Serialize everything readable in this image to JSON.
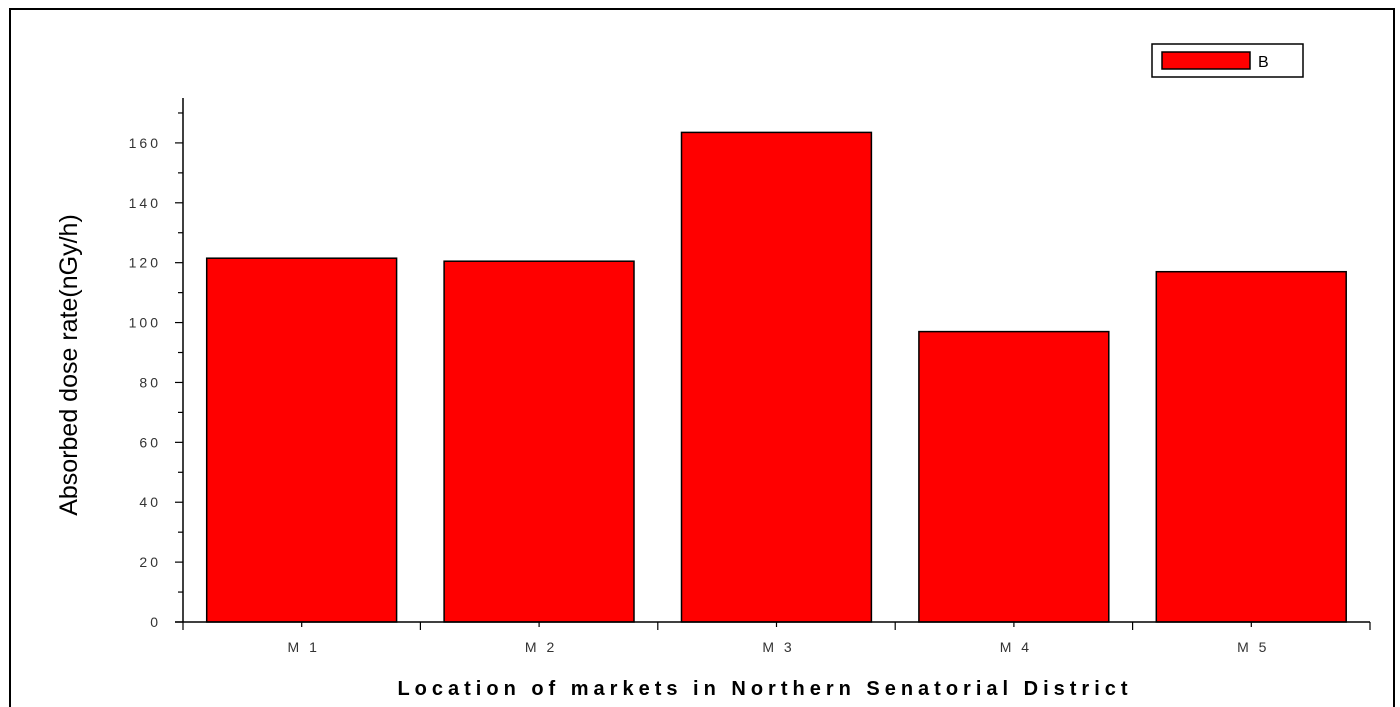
{
  "chart_data": {
    "type": "bar",
    "categories": [
      "M 1",
      "M 2",
      "M 3",
      "M 4",
      "M 5"
    ],
    "series": [
      {
        "name": "B",
        "values": [
          121.5,
          120.5,
          163.5,
          97,
          117
        ]
      }
    ],
    "xlabel": "Location of markets in Northern Senatorial District",
    "ylabel": "Absorbed dose rate(nGy/h)",
    "ylim": [
      0,
      175
    ],
    "yticks": [
      0,
      20,
      40,
      60,
      80,
      100,
      120,
      140,
      160
    ],
    "bar_color": "#ff0000",
    "grid": false,
    "legend_position": "top-right"
  }
}
